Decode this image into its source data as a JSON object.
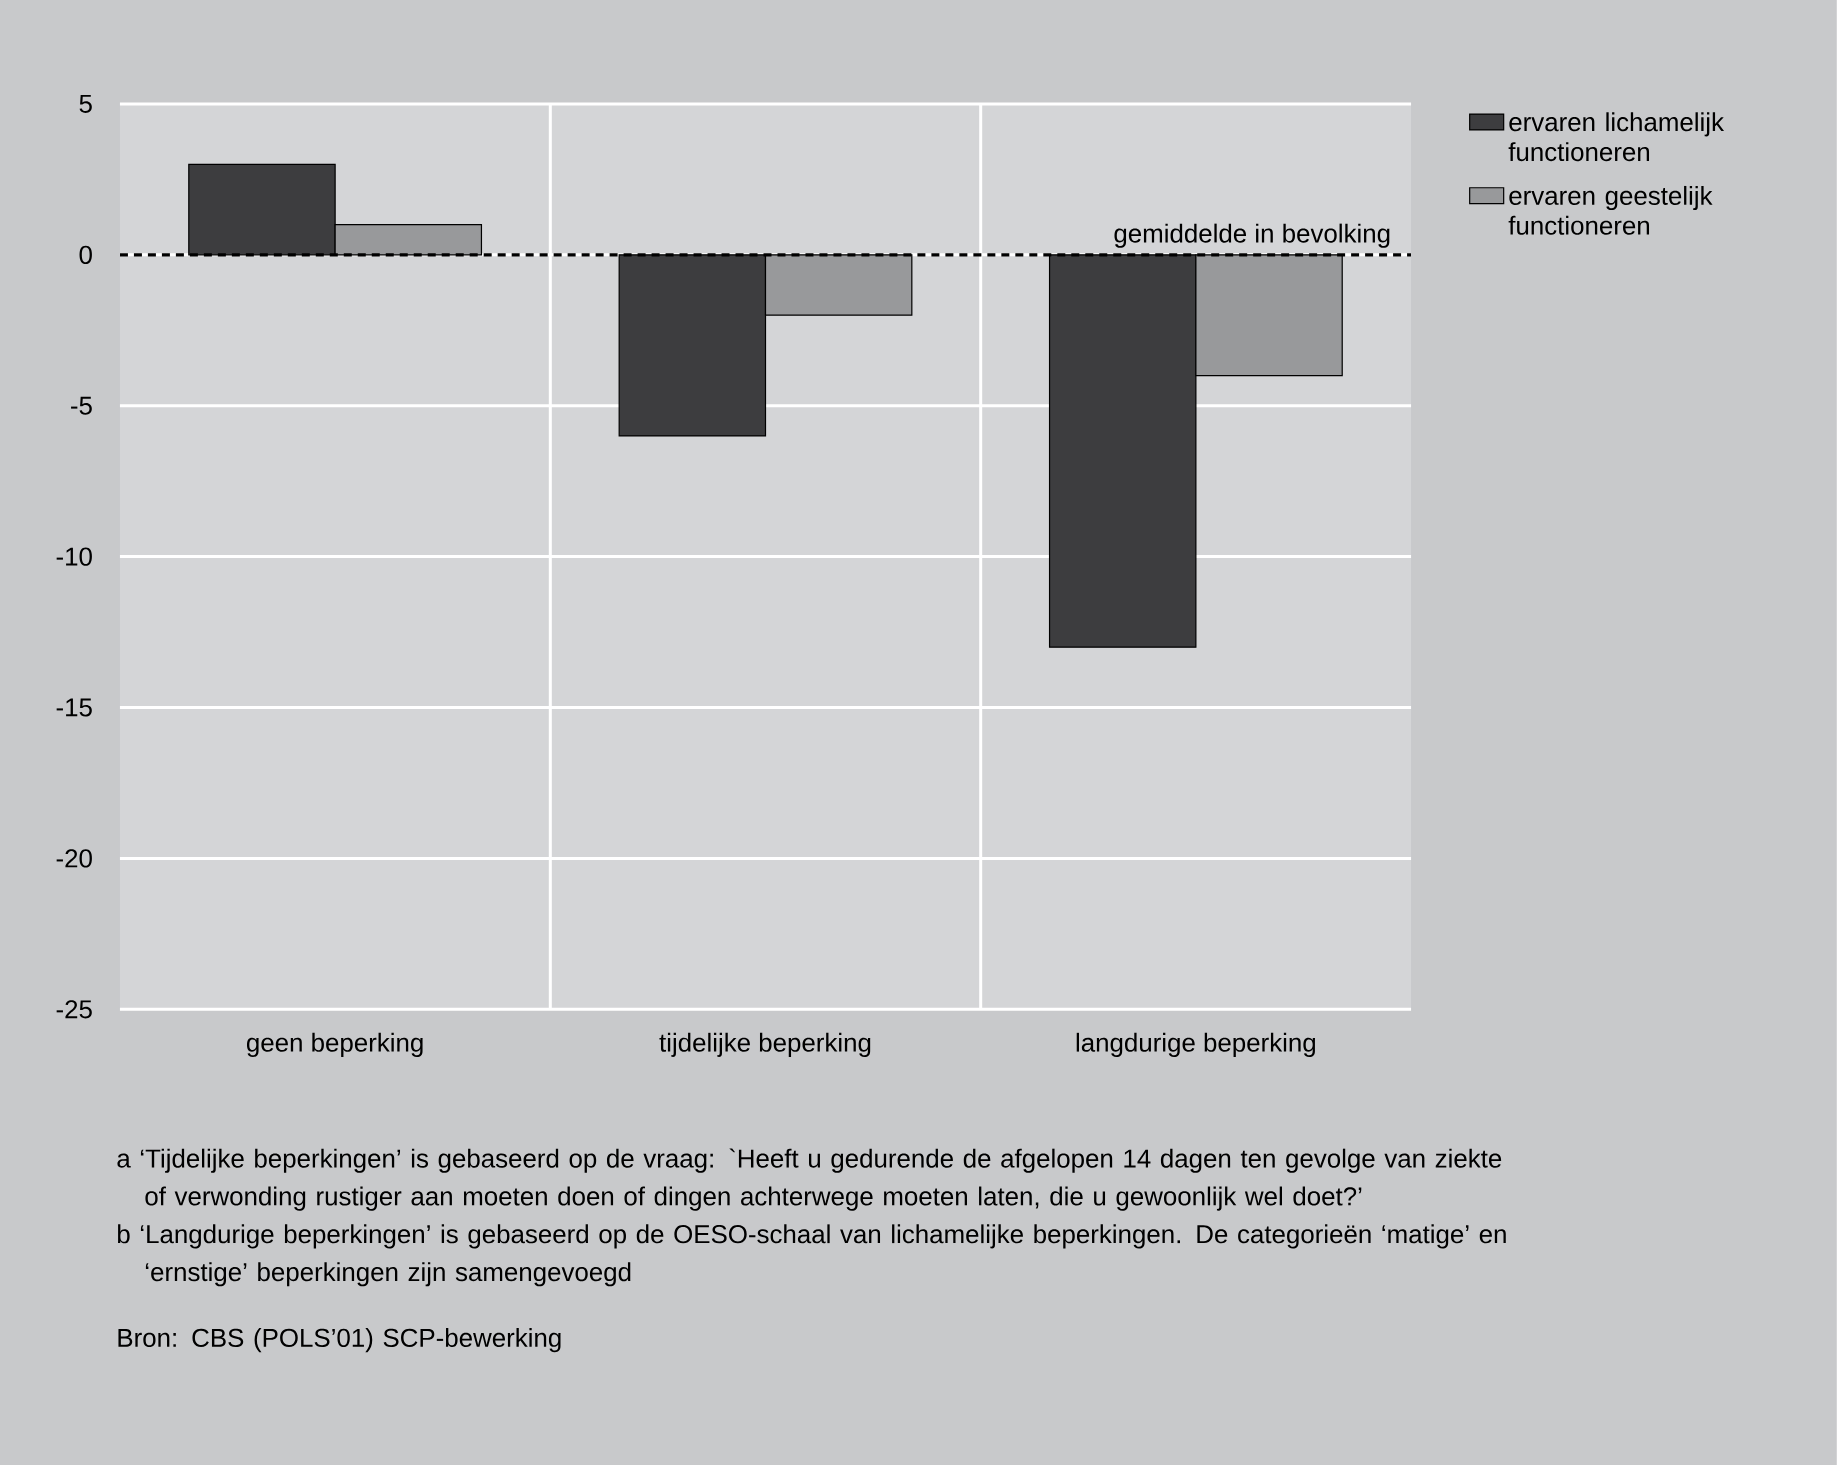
{
  "chart_data": {
    "type": "bar",
    "categories": [
      "geen beperking",
      "tijdelijke beperking",
      "langdurige beperking"
    ],
    "series": [
      {
        "name": "ervaren lichamelijk functioneren",
        "color": "#3d3d3f",
        "values": [
          3,
          -6,
          -13
        ]
      },
      {
        "name": "ervaren geestelijk functioneren",
        "color": "#98999b",
        "values": [
          1,
          -2,
          -4
        ]
      }
    ],
    "ylim": [
      -25,
      5
    ],
    "yticks": [
      -25,
      -20,
      -15,
      -10,
      -5,
      0,
      5
    ],
    "grid": true,
    "legend": "right",
    "ref_lines": [
      {
        "axis": "y",
        "value": 0,
        "label": "gemiddelde in bevolking",
        "line_style": "dashed"
      }
    ],
    "annotations": [
      "a ‘Tijdelijke beperkingen’ is gebaseerd op de vraag: `Heeft u gedurende de afgelopen 14 dagen ten gevolge van ziekte of verwonding rustiger aan moeten doen of dingen achterwege moeten laten, die u gewoonlijk wel doet?’",
      "b ‘Langdurige beperkingen’ is gebaseerd op de OESO-schaal van lichamelijke beperkingen. De categorieën ‘matige’ en ‘ernstige’ beperkingen zijn samengevoegd",
      "Bron: CBS (POLS’01) SCP-bewerking"
    ]
  }
}
